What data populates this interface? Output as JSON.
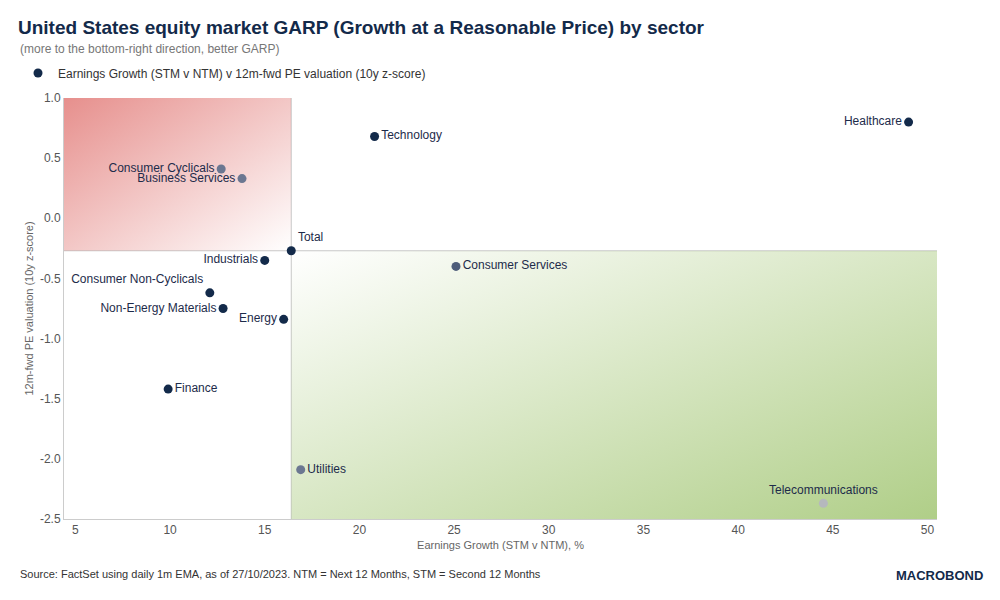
{
  "chart_data": {
    "type": "scatter",
    "title": "United States equity market GARP (Growth at a Reasonable Price) by sector",
    "subtitle": "(more to the bottom-right direction, better GARP)",
    "x_label": "Earnings Growth (STM v NTM), %",
    "y_label": "12m-fwd PE valuation (10y z-score)",
    "source": "Source: FactSet using daily 1m EMA, as of 27/10/2023. NTM = Next 12 Months, STM = Second 12 Months",
    "logo": "MACROBOND",
    "x": [
      49.0,
      20.8,
      12.7,
      13.8,
      16.4,
      15.0,
      25.1,
      12.1,
      12.8,
      16.0,
      9.9,
      16.9,
      44.5
    ],
    "series": [
      {
        "name": "Earnings Growth (STM v NTM) v 12m-fwd PE valuation (10y z-score)",
        "color": "#132a4a",
        "marker": "circle",
        "labels": [
          "Healthcare",
          "Technology",
          "Consumer Cyclicals",
          "Business Services",
          "Total",
          "Industrials",
          "Consumer Services",
          "Consumer Non-Cyclicals",
          "Non-Energy Materials",
          "Energy",
          "Finance",
          "Utilities",
          "Telecommunications"
        ],
        "values": [
          0.8,
          0.68,
          0.41,
          0.33,
          -0.27,
          -0.35,
          -0.4,
          -0.62,
          -0.75,
          -0.84,
          -1.42,
          -2.09,
          -2.37
        ],
        "colors": [
          "#132a4a",
          "#132a4a",
          "#6b7791",
          "#6b7791",
          "#132a4a",
          "#132a4a",
          "#4e5d7a",
          "#132a4a",
          "#132a4a",
          "#132a4a",
          "#132a4a",
          "#6b7791",
          "#b5b8bd"
        ]
      }
    ],
    "reference_lines": {
      "x": 16.4,
      "y": -0.27
    },
    "xlim": [
      4.4,
      50.5
    ],
    "ylim": [
      -2.5,
      1.0
    ],
    "xticks": [
      5,
      10,
      15,
      20,
      25,
      30,
      35,
      40,
      45,
      50
    ],
    "yticks": [
      {
        "value": 1.0,
        "label": "1.0"
      },
      {
        "value": 0.5,
        "label": "0.5"
      },
      {
        "value": 0.0,
        "label": "0.0"
      },
      {
        "value": -0.5,
        "label": "-0.5"
      },
      {
        "value": -1.0,
        "label": "-1.0"
      },
      {
        "value": -1.5,
        "label": "-1.5"
      },
      {
        "value": -2.0,
        "label": "-2.0"
      },
      {
        "value": -2.5,
        "label": "-2.5"
      }
    ],
    "grid": false,
    "legend": "top left"
  }
}
